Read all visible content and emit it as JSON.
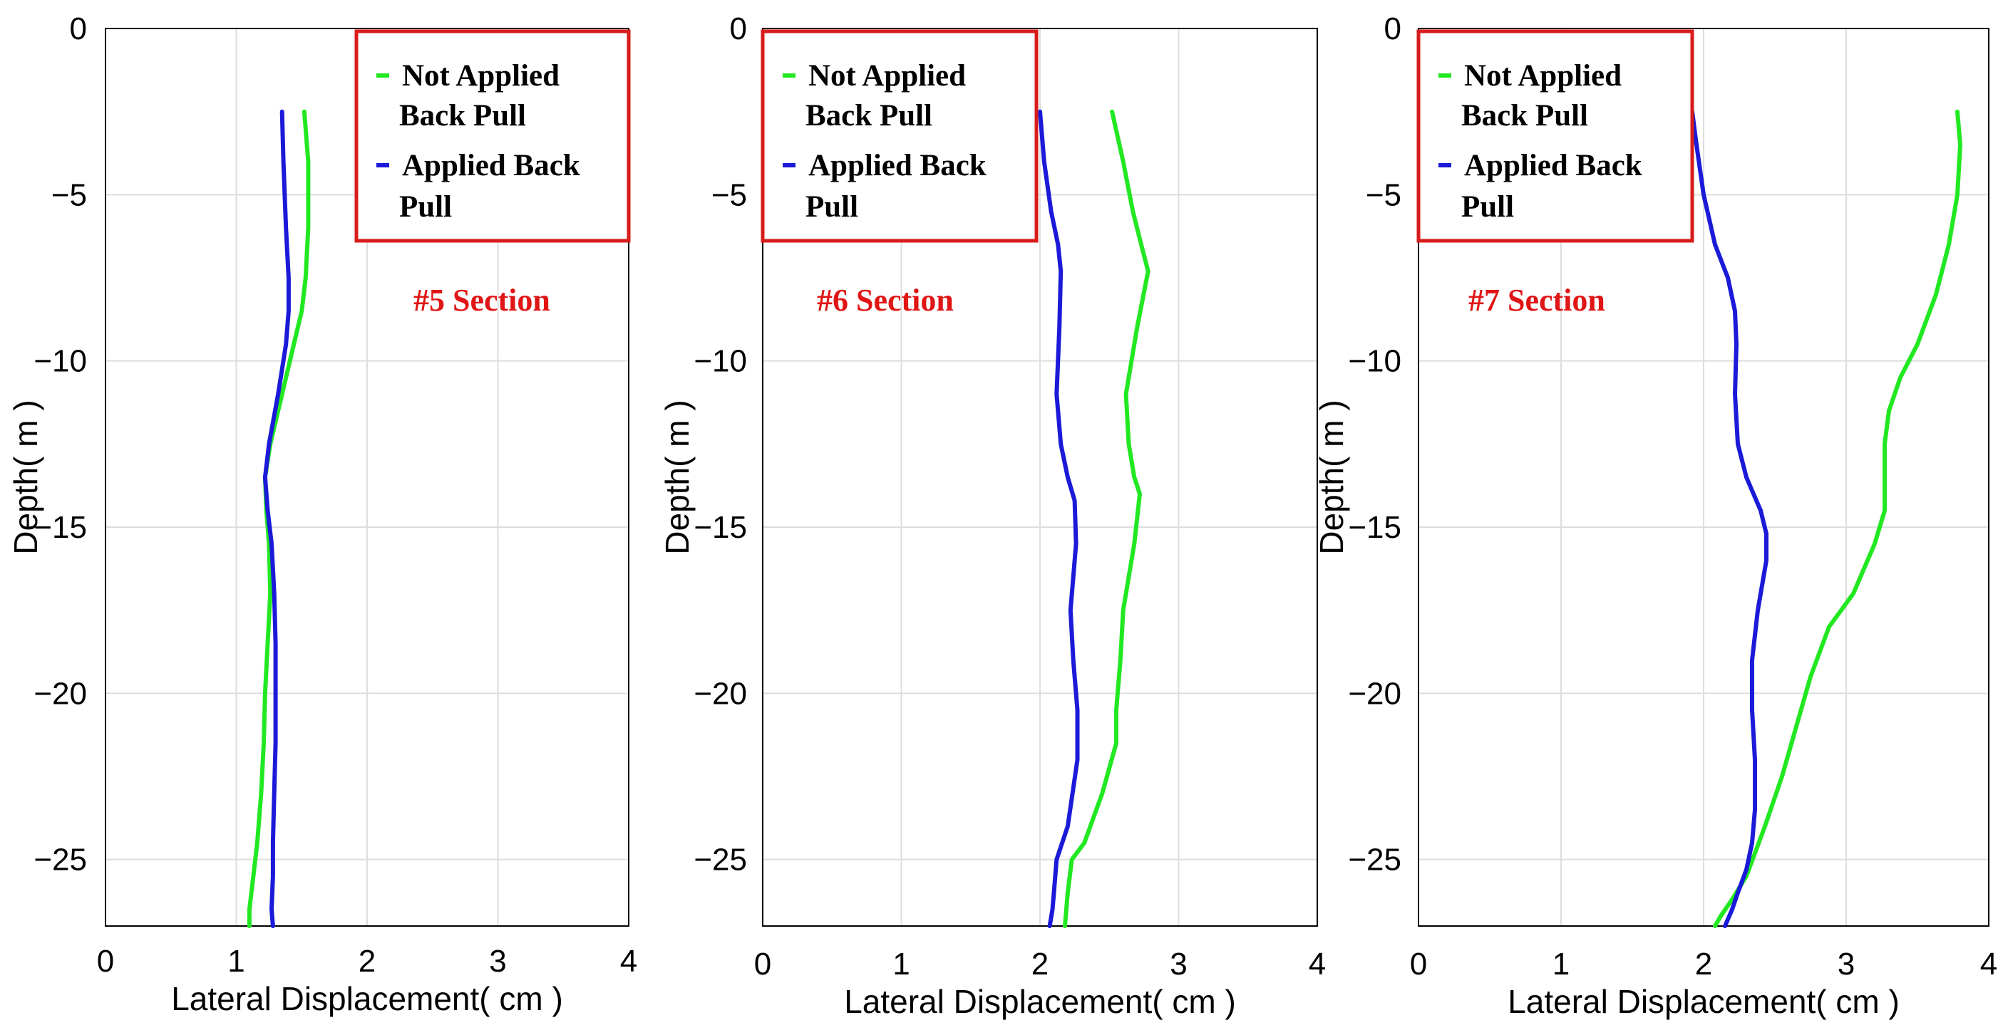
{
  "colors": {
    "not_applied": "#22e822",
    "applied": "#1a1ad8",
    "legend_border": "#d81c1c",
    "section_label": "#e01515",
    "grid": "#dddddd"
  },
  "chart_data": [
    {
      "type": "line",
      "annotation": "#5 Section",
      "xlabel": "Lateral Displacement( cm )",
      "ylabel": "Depth( m )",
      "xlim": [
        0,
        4
      ],
      "ylim": [
        -27,
        0
      ],
      "x_ticks": [
        "0",
        "1",
        "2",
        "3",
        "4"
      ],
      "y_ticks": [
        "0",
        "−5",
        "−10",
        "−15",
        "−20",
        "−25"
      ],
      "grid": true,
      "legend": {
        "position": "top-right",
        "entries": [
          [
            "Not Applied",
            "Back Pull"
          ],
          [
            "Applied Back",
            "Pull"
          ]
        ]
      },
      "series": [
        {
          "name": "Not Applied Back Pull",
          "color_key": "not_applied",
          "x": [
            1.52,
            1.55,
            1.55,
            1.53,
            1.5,
            1.44,
            1.35,
            1.26,
            1.22,
            1.23,
            1.25,
            1.26,
            1.24,
            1.22,
            1.21,
            1.19,
            1.16,
            1.13,
            1.1,
            1.1
          ],
          "y": [
            -2.5,
            -4,
            -6,
            -7.5,
            -8.5,
            -9.5,
            -11,
            -12.5,
            -13.5,
            -14.5,
            -15.5,
            -17,
            -18.5,
            -20,
            -21.5,
            -23,
            -24.5,
            -25.5,
            -26.5,
            -27
          ]
        },
        {
          "name": "Applied Back Pull",
          "color_key": "applied",
          "x": [
            1.35,
            1.36,
            1.38,
            1.4,
            1.4,
            1.38,
            1.32,
            1.25,
            1.22,
            1.24,
            1.27,
            1.29,
            1.3,
            1.3,
            1.3,
            1.29,
            1.28,
            1.28,
            1.27,
            1.28
          ],
          "y": [
            -2.5,
            -4,
            -6,
            -7.5,
            -8.5,
            -9.5,
            -11,
            -12.5,
            -13.5,
            -14.5,
            -15.5,
            -17,
            -18.5,
            -20,
            -21.5,
            -23,
            -24.5,
            -25.5,
            -26.5,
            -27
          ]
        }
      ]
    },
    {
      "type": "line",
      "annotation": "#6 Section",
      "xlabel": "Lateral Displacement( cm )",
      "ylabel": "Depth( m )",
      "xlim": [
        0,
        4
      ],
      "ylim": [
        -27,
        0
      ],
      "x_ticks": [
        "0",
        "1",
        "2",
        "3",
        "4"
      ],
      "y_ticks": [
        "0",
        "−5",
        "−10",
        "−15",
        "−20",
        "−25"
      ],
      "grid": true,
      "legend": {
        "position": "top-left",
        "entries": [
          [
            "Not Applied",
            "Back Pull"
          ],
          [
            "Applied Back",
            "Pull"
          ]
        ]
      },
      "series": [
        {
          "name": "Not Applied Back Pull",
          "color_key": "not_applied",
          "x": [
            2.52,
            2.6,
            2.67,
            2.73,
            2.78,
            2.7,
            2.62,
            2.64,
            2.68,
            2.72,
            2.68,
            2.6,
            2.58,
            2.55,
            2.55,
            2.45,
            2.32,
            2.23,
            2.2,
            2.18
          ],
          "y": [
            -2.5,
            -4,
            -5.5,
            -6.5,
            -7.3,
            -9,
            -11,
            -12.5,
            -13.5,
            -14,
            -15.5,
            -17.5,
            -19,
            -20.5,
            -21.5,
            -23,
            -24.5,
            -25,
            -26,
            -27
          ]
        },
        {
          "name": "Applied Back Pull",
          "color_key": "applied",
          "x": [
            2.0,
            2.03,
            2.08,
            2.13,
            2.15,
            2.14,
            2.12,
            2.15,
            2.2,
            2.25,
            2.26,
            2.24,
            2.22,
            2.24,
            2.27,
            2.27,
            2.2,
            2.12,
            2.1,
            2.09,
            2.07
          ],
          "y": [
            -2.5,
            -4,
            -5.5,
            -6.5,
            -7.3,
            -9,
            -11,
            -12.5,
            -13.5,
            -14.2,
            -15.5,
            -16.5,
            -17.5,
            -19,
            -20.5,
            -22,
            -24,
            -25,
            -26,
            -26.5,
            -27
          ]
        }
      ]
    },
    {
      "type": "line",
      "annotation": "#7 Section",
      "xlabel": "Lateral Displacement( cm )",
      "ylabel": "Depth( m )",
      "xlim": [
        0,
        4
      ],
      "ylim": [
        -27,
        0
      ],
      "x_ticks": [
        "0",
        "1",
        "2",
        "3",
        "4"
      ],
      "y_ticks": [
        "0",
        "−5",
        "−10",
        "−15",
        "−20",
        "−25"
      ],
      "grid": true,
      "legend": {
        "position": "top-left",
        "entries": [
          [
            "Not Applied",
            "Back Pull"
          ],
          [
            "Applied Back",
            "Pull"
          ]
        ]
      },
      "series": [
        {
          "name": "Not Applied Back Pull",
          "color_key": "not_applied",
          "x": [
            3.78,
            3.8,
            3.78,
            3.72,
            3.63,
            3.5,
            3.38,
            3.3,
            3.27,
            3.27,
            3.27,
            3.2,
            3.05,
            2.88,
            2.75,
            2.65,
            2.55,
            2.43,
            2.3,
            2.2,
            2.12,
            2.08
          ],
          "y": [
            -2.5,
            -3.5,
            -5,
            -6.5,
            -8,
            -9.5,
            -10.5,
            -11.5,
            -12.5,
            -13.5,
            -14.5,
            -15.5,
            -17,
            -18,
            -19.5,
            -21,
            -22.5,
            -24,
            -25.5,
            -26.2,
            -26.7,
            -27
          ]
        },
        {
          "name": "Applied Back Pull",
          "color_key": "applied",
          "x": [
            1.92,
            1.95,
            2.0,
            2.08,
            2.17,
            2.22,
            2.23,
            2.22,
            2.24,
            2.3,
            2.4,
            2.44,
            2.44,
            2.38,
            2.34,
            2.34,
            2.36,
            2.36,
            2.34,
            2.3,
            2.24,
            2.2,
            2.15
          ],
          "y": [
            -2.5,
            -3.5,
            -5,
            -6.5,
            -7.5,
            -8.5,
            -9.5,
            -11,
            -12.5,
            -13.5,
            -14.5,
            -15.2,
            -16,
            -17.5,
            -19,
            -20.5,
            -22,
            -23.5,
            -24.5,
            -25.3,
            -26,
            -26.5,
            -27
          ]
        }
      ]
    }
  ]
}
